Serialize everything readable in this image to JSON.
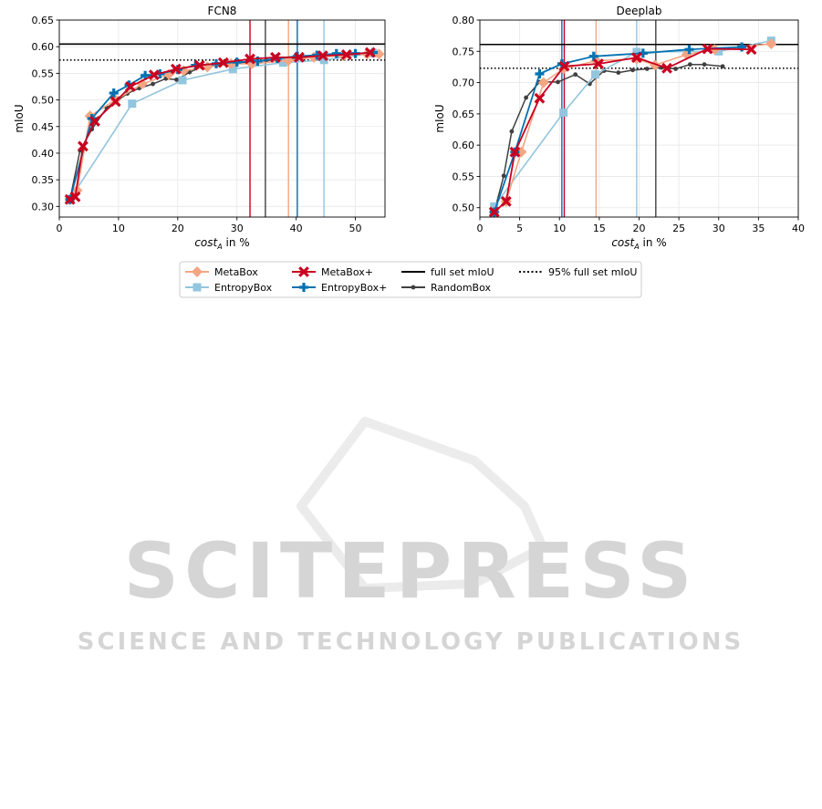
{
  "watermark": {
    "main": "SCITEPRESS",
    "sub": "SCIENCE AND TECHNOLOGY PUBLICATIONS"
  },
  "colors": {
    "MetaBox": "#f4a582",
    "EntropyBox": "#92c5de",
    "MetaBox+": "#ca0020",
    "EntropyBox+": "#0571b0",
    "RandomBox": "#404040",
    "reference": "#000000"
  },
  "legend": {
    "items": [
      {
        "label": "MetaBox",
        "style": "MetaBox"
      },
      {
        "label": "EntropyBox",
        "style": "EntropyBox"
      },
      {
        "label": "MetaBox+",
        "style": "MetaBox+"
      },
      {
        "label": "EntropyBox+",
        "style": "EntropyBox+"
      },
      {
        "label": "full set mIoU",
        "style": "full"
      },
      {
        "label": "RandomBox",
        "style": "RandomBox"
      },
      {
        "label": "95% full set mIoU",
        "style": "p95"
      }
    ]
  },
  "chart_data": [
    {
      "type": "line",
      "title": "FCN8",
      "xlabel": "cost_A in %",
      "ylabel": "mIoU",
      "xlim": [
        0,
        55
      ],
      "ylim": [
        0.28,
        0.65
      ],
      "xticks": [
        0,
        10,
        20,
        30,
        40,
        50
      ],
      "yticks": [
        0.3,
        0.35,
        0.4,
        0.45,
        0.5,
        0.55,
        0.6,
        0.65
      ],
      "ytick_labels": [
        "0.30",
        "0.35",
        "0.40",
        "0.45",
        "0.50",
        "0.55",
        "0.60",
        "0.65"
      ],
      "grid": true,
      "hlines": [
        {
          "name": "full set mIoU",
          "y": 0.605
        },
        {
          "name": "95% full set mIoU",
          "y": 0.575
        }
      ],
      "vlines": [
        {
          "series": "MetaBox+",
          "x": 32.2
        },
        {
          "series": "RandomBox",
          "x": 34.8
        },
        {
          "series": "MetaBox",
          "x": 38.7
        },
        {
          "series": "EntropyBox+",
          "x": 40.2
        },
        {
          "series": "EntropyBox",
          "x": 44.7
        }
      ],
      "series": [
        {
          "name": "RandomBox",
          "x": [
            1.8,
            3.5,
            5.5,
            8.0,
            11.5,
            13.5,
            15.8,
            18.0,
            19.8,
            22.0,
            24.0,
            26.5,
            29.5,
            32.0,
            35.0,
            38.0,
            41.0,
            44.0,
            47.0,
            50.0,
            52.5
          ],
          "y": [
            0.313,
            0.405,
            0.445,
            0.485,
            0.512,
            0.522,
            0.53,
            0.54,
            0.538,
            0.552,
            0.562,
            0.565,
            0.568,
            0.57,
            0.574,
            0.577,
            0.579,
            0.581,
            0.584,
            0.586,
            0.588
          ]
        },
        {
          "name": "EntropyBox",
          "x": [
            1.8,
            12.3,
            20.8,
            29.3,
            37.8,
            44.7,
            53.0
          ],
          "y": [
            0.313,
            0.493,
            0.537,
            0.558,
            0.57,
            0.575,
            0.588
          ]
        },
        {
          "name": "MetaBox",
          "x": [
            1.8,
            3.0,
            5.2,
            9.5,
            14.0,
            18.5,
            21.0,
            25.0,
            29.0,
            32.5,
            38.7,
            43.0,
            48.0,
            52.0,
            54.0
          ],
          "y": [
            0.313,
            0.33,
            0.47,
            0.5,
            0.53,
            0.548,
            0.555,
            0.562,
            0.568,
            0.568,
            0.574,
            0.58,
            0.583,
            0.586,
            0.586
          ]
        },
        {
          "name": "EntropyBox+",
          "x": [
            1.8,
            5.5,
            9.2,
            11.8,
            14.5,
            17.0,
            20.0,
            23.0,
            26.5,
            30.0,
            33.5,
            36.8,
            40.2,
            43.5,
            46.8,
            50.0,
            53.0
          ],
          "y": [
            0.313,
            0.465,
            0.513,
            0.528,
            0.546,
            0.549,
            0.557,
            0.565,
            0.568,
            0.571,
            0.573,
            0.578,
            0.582,
            0.584,
            0.587,
            0.587,
            0.589
          ]
        },
        {
          "name": "MetaBox+",
          "x": [
            1.8,
            2.7,
            4.0,
            6.0,
            9.5,
            12.0,
            16.0,
            19.7,
            23.7,
            27.7,
            32.2,
            36.5,
            40.5,
            44.5,
            48.5,
            52.5
          ],
          "y": [
            0.313,
            0.318,
            0.413,
            0.46,
            0.497,
            0.525,
            0.547,
            0.558,
            0.565,
            0.57,
            0.577,
            0.58,
            0.58,
            0.583,
            0.585,
            0.589
          ]
        }
      ]
    },
    {
      "type": "line",
      "title": "Deeplab",
      "xlabel": "cost_A in %",
      "ylabel": "mIoU",
      "xlim": [
        0,
        40
      ],
      "ylim": [
        0.485,
        0.8
      ],
      "xticks": [
        0,
        5,
        10,
        15,
        20,
        25,
        30,
        35,
        40
      ],
      "yticks": [
        0.5,
        0.55,
        0.6,
        0.65,
        0.7,
        0.75,
        0.8
      ],
      "ytick_labels": [
        "0.50",
        "0.55",
        "0.60",
        "0.65",
        "0.70",
        "0.75",
        "0.80"
      ],
      "grid": true,
      "hlines": [
        {
          "name": "full set mIoU",
          "y": 0.761
        },
        {
          "name": "95% full set mIoU",
          "y": 0.723
        }
      ],
      "vlines": [
        {
          "series": "EntropyBox+",
          "x": 10.3
        },
        {
          "series": "MetaBox+",
          "x": 10.6
        },
        {
          "series": "MetaBox",
          "x": 14.6
        },
        {
          "series": "EntropyBox",
          "x": 19.7
        },
        {
          "series": "RandomBox",
          "x": 22.1
        }
      ],
      "series": [
        {
          "name": "RandomBox",
          "x": [
            1.8,
            3.0,
            4.0,
            5.8,
            7.5,
            9.8,
            12.0,
            13.8,
            15.6,
            17.4,
            19.2,
            21.0,
            22.8,
            24.6,
            26.4,
            28.2,
            30.5
          ],
          "y": [
            0.493,
            0.551,
            0.622,
            0.676,
            0.701,
            0.701,
            0.713,
            0.698,
            0.719,
            0.716,
            0.72,
            0.722,
            0.724,
            0.722,
            0.729,
            0.729,
            0.726
          ]
        },
        {
          "name": "EntropyBox",
          "x": [
            1.8,
            10.5,
            14.5,
            19.7,
            30.0,
            36.6
          ],
          "y": [
            0.502,
            0.652,
            0.713,
            0.749,
            0.75,
            0.767
          ]
        },
        {
          "name": "MetaBox",
          "x": [
            1.8,
            3.3,
            5.2,
            8.0,
            10.5,
            14.6,
            19.7,
            22.0,
            26.0,
            29.5,
            36.6
          ],
          "y": [
            0.493,
            0.51,
            0.589,
            0.7,
            0.722,
            0.735,
            0.738,
            0.728,
            0.745,
            0.753,
            0.762
          ]
        },
        {
          "name": "EntropyBox+",
          "x": [
            1.8,
            4.4,
            7.5,
            10.3,
            14.3,
            20.5,
            26.3,
            32.9
          ],
          "y": [
            0.493,
            0.589,
            0.714,
            0.73,
            0.742,
            0.747,
            0.753,
            0.757
          ]
        },
        {
          "name": "MetaBox+",
          "x": [
            1.8,
            3.3,
            4.4,
            7.5,
            10.6,
            14.9,
            19.7,
            23.5,
            28.6,
            34.1
          ],
          "y": [
            0.493,
            0.51,
            0.589,
            0.675,
            0.726,
            0.73,
            0.74,
            0.723,
            0.754,
            0.753
          ]
        }
      ]
    }
  ]
}
